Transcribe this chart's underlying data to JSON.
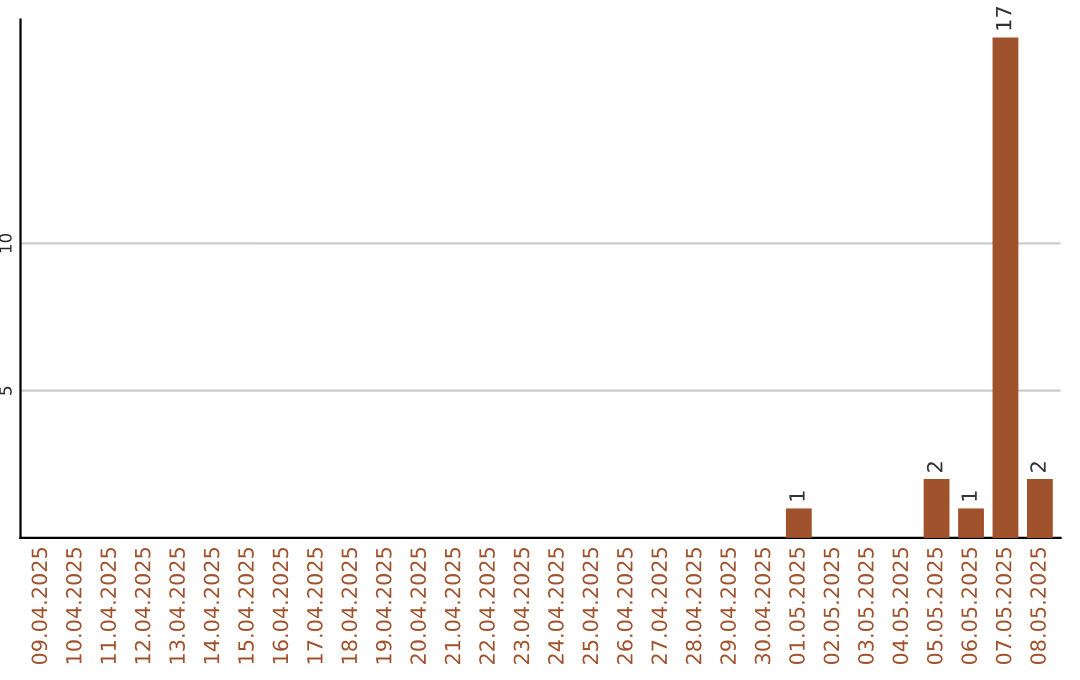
{
  "chart_data": {
    "type": "bar",
    "categories": [
      "09.04.2025",
      "10.04.2025",
      "11.04.2025",
      "12.04.2025",
      "13.04.2025",
      "14.04.2025",
      "15.04.2025",
      "16.04.2025",
      "17.04.2025",
      "18.04.2025",
      "19.04.2025",
      "20.04.2025",
      "21.04.2025",
      "22.04.2025",
      "23.04.2025",
      "24.04.2025",
      "25.04.2025",
      "26.04.2025",
      "27.04.2025",
      "28.04.2025",
      "29.04.2025",
      "30.04.2025",
      "01.05.2025",
      "02.05.2025",
      "03.05.2025",
      "04.05.2025",
      "05.05.2025",
      "06.05.2025",
      "07.05.2025",
      "08.05.2025"
    ],
    "values": [
      0,
      0,
      0,
      0,
      0,
      0,
      0,
      0,
      0,
      0,
      0,
      0,
      0,
      0,
      0,
      0,
      0,
      0,
      0,
      0,
      0,
      0,
      1,
      0,
      0,
      0,
      2,
      1,
      17,
      2
    ],
    "value_labels": [
      null,
      null,
      null,
      null,
      null,
      null,
      null,
      null,
      null,
      null,
      null,
      null,
      null,
      null,
      null,
      null,
      null,
      null,
      null,
      null,
      null,
      null,
      "1",
      null,
      null,
      null,
      "2",
      "1",
      "17",
      "2"
    ],
    "color": "#a0522d",
    "ylim": [
      0,
      17.6
    ],
    "yticks": [
      5,
      10
    ],
    "grid": "y"
  }
}
